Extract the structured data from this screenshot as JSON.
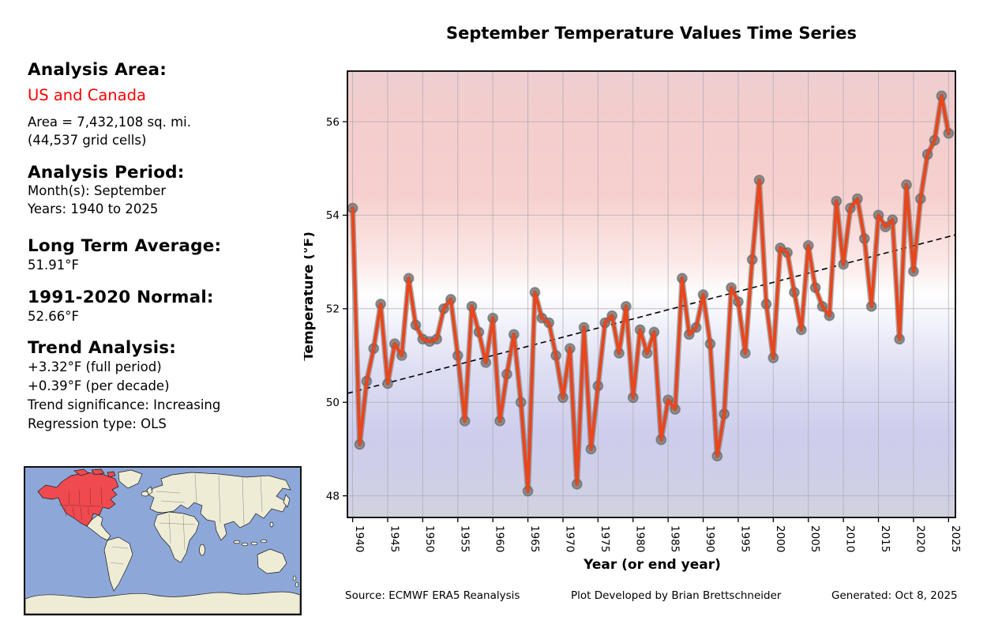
{
  "title": "September Temperature Values Time Series",
  "panel": {
    "analysis_area_heading": "Analysis Area:",
    "analysis_area_value": "US and Canada",
    "area_line1": "Area = 7,432,108 sq. mi.",
    "area_line2": "(44,537 grid cells)",
    "analysis_period_heading": "Analysis Period:",
    "period_month": "Month(s): September",
    "period_years": "Years: 1940 to 2025",
    "long_term_avg_heading": "Long Term Average:",
    "long_term_avg_value": "51.91°F",
    "normal_heading": "1991-2020 Normal:",
    "normal_value": "52.66°F",
    "trend_heading": "Trend Analysis:",
    "trend_full_period": "+3.32°F (full period)",
    "trend_per_decade": "+0.39°F (per decade)",
    "trend_significance": "Trend significance: Increasing",
    "regression_type": "Regression type: OLS"
  },
  "footer": {
    "source": "Source: ECMWF ERA5 Reanalysis",
    "credit": "Plot Developed by Brian Brettschneider",
    "generated": "Generated: Oct 8, 2025"
  },
  "colors": {
    "line": "#e8461c",
    "marker": "#9a9a9a",
    "accent_red": "#ff0000",
    "map_ocean": "#8da8d8",
    "map_land": "#efecd6",
    "map_highlight": "#ee4a50",
    "bg_top_pink": "#f6d0ce",
    "bg_bottom_lavender": "#cdcdec"
  },
  "chart_data": {
    "type": "line",
    "title": "September Temperature Values Time Series",
    "xlabel": "Year (or end year)",
    "ylabel": "Temperature (°F)",
    "grid": true,
    "xlim": [
      1939.26,
      2025.97
    ],
    "ylim": [
      47.5,
      57.1
    ],
    "x_ticks": [
      1940,
      1945,
      1950,
      1955,
      1960,
      1965,
      1970,
      1975,
      1980,
      1985,
      1990,
      1995,
      2000,
      2005,
      2010,
      2015,
      2020,
      2025
    ],
    "x_tick_labels": [
      "1940",
      "1945",
      "1950",
      "1955",
      "1960",
      "1965",
      "1970",
      "1975",
      "1980",
      "1985",
      "1990",
      "1995",
      "2000",
      "2005",
      "2010",
      "2015",
      "2020",
      "2025"
    ],
    "y_ticks": [
      48,
      50,
      52,
      54,
      56
    ],
    "years": [
      1940,
      1941,
      1942,
      1943,
      1944,
      1945,
      1946,
      1947,
      1948,
      1949,
      1950,
      1951,
      1952,
      1953,
      1954,
      1955,
      1956,
      1957,
      1958,
      1959,
      1960,
      1961,
      1962,
      1963,
      1964,
      1965,
      1966,
      1967,
      1968,
      1969,
      1970,
      1971,
      1972,
      1973,
      1974,
      1975,
      1976,
      1977,
      1978,
      1979,
      1980,
      1981,
      1982,
      1983,
      1984,
      1985,
      1986,
      1987,
      1988,
      1989,
      1990,
      1991,
      1992,
      1993,
      1994,
      1995,
      1996,
      1997,
      1998,
      1999,
      2000,
      2001,
      2002,
      2003,
      2004,
      2005,
      2006,
      2007,
      2008,
      2009,
      2010,
      2011,
      2012,
      2013,
      2014,
      2015,
      2016,
      2017,
      2018,
      2019,
      2020,
      2021,
      2022,
      2023,
      2024,
      2025
    ],
    "values": [
      54.15,
      49.1,
      50.45,
      51.15,
      52.1,
      50.4,
      51.25,
      51.0,
      52.65,
      51.65,
      51.35,
      51.3,
      51.35,
      52.0,
      52.2,
      51.0,
      49.6,
      52.05,
      51.5,
      50.85,
      51.8,
      49.6,
      50.6,
      51.45,
      50.0,
      48.1,
      52.35,
      51.8,
      51.7,
      51.0,
      50.1,
      51.15,
      48.25,
      51.6,
      49.0,
      50.35,
      51.7,
      51.85,
      51.05,
      52.05,
      50.1,
      51.55,
      51.05,
      51.5,
      49.2,
      50.05,
      49.85,
      52.65,
      51.45,
      51.6,
      52.3,
      51.25,
      48.85,
      49.75,
      52.45,
      52.15,
      51.05,
      53.05,
      54.75,
      52.1,
      50.95,
      53.3,
      53.2,
      52.35,
      51.55,
      53.35,
      52.45,
      52.05,
      51.85,
      54.3,
      52.95,
      54.15,
      54.35,
      53.5,
      52.05,
      54.0,
      53.75,
      53.9,
      51.35,
      54.65,
      52.8,
      54.35,
      55.3,
      55.6,
      56.55,
      55.75
    ],
    "series_mean": 51.91,
    "normal_1991_2020": 52.66,
    "trend": {
      "style": "dashed-ols",
      "full_period_change_F": 3.32,
      "per_decade_change_F": 0.39,
      "left_edge_value": 50.19,
      "right_edge_value": 53.58
    },
    "legend": null,
    "background": "vertical gradient: pink (warm) at top through white to lavender (cool) at bottom"
  }
}
